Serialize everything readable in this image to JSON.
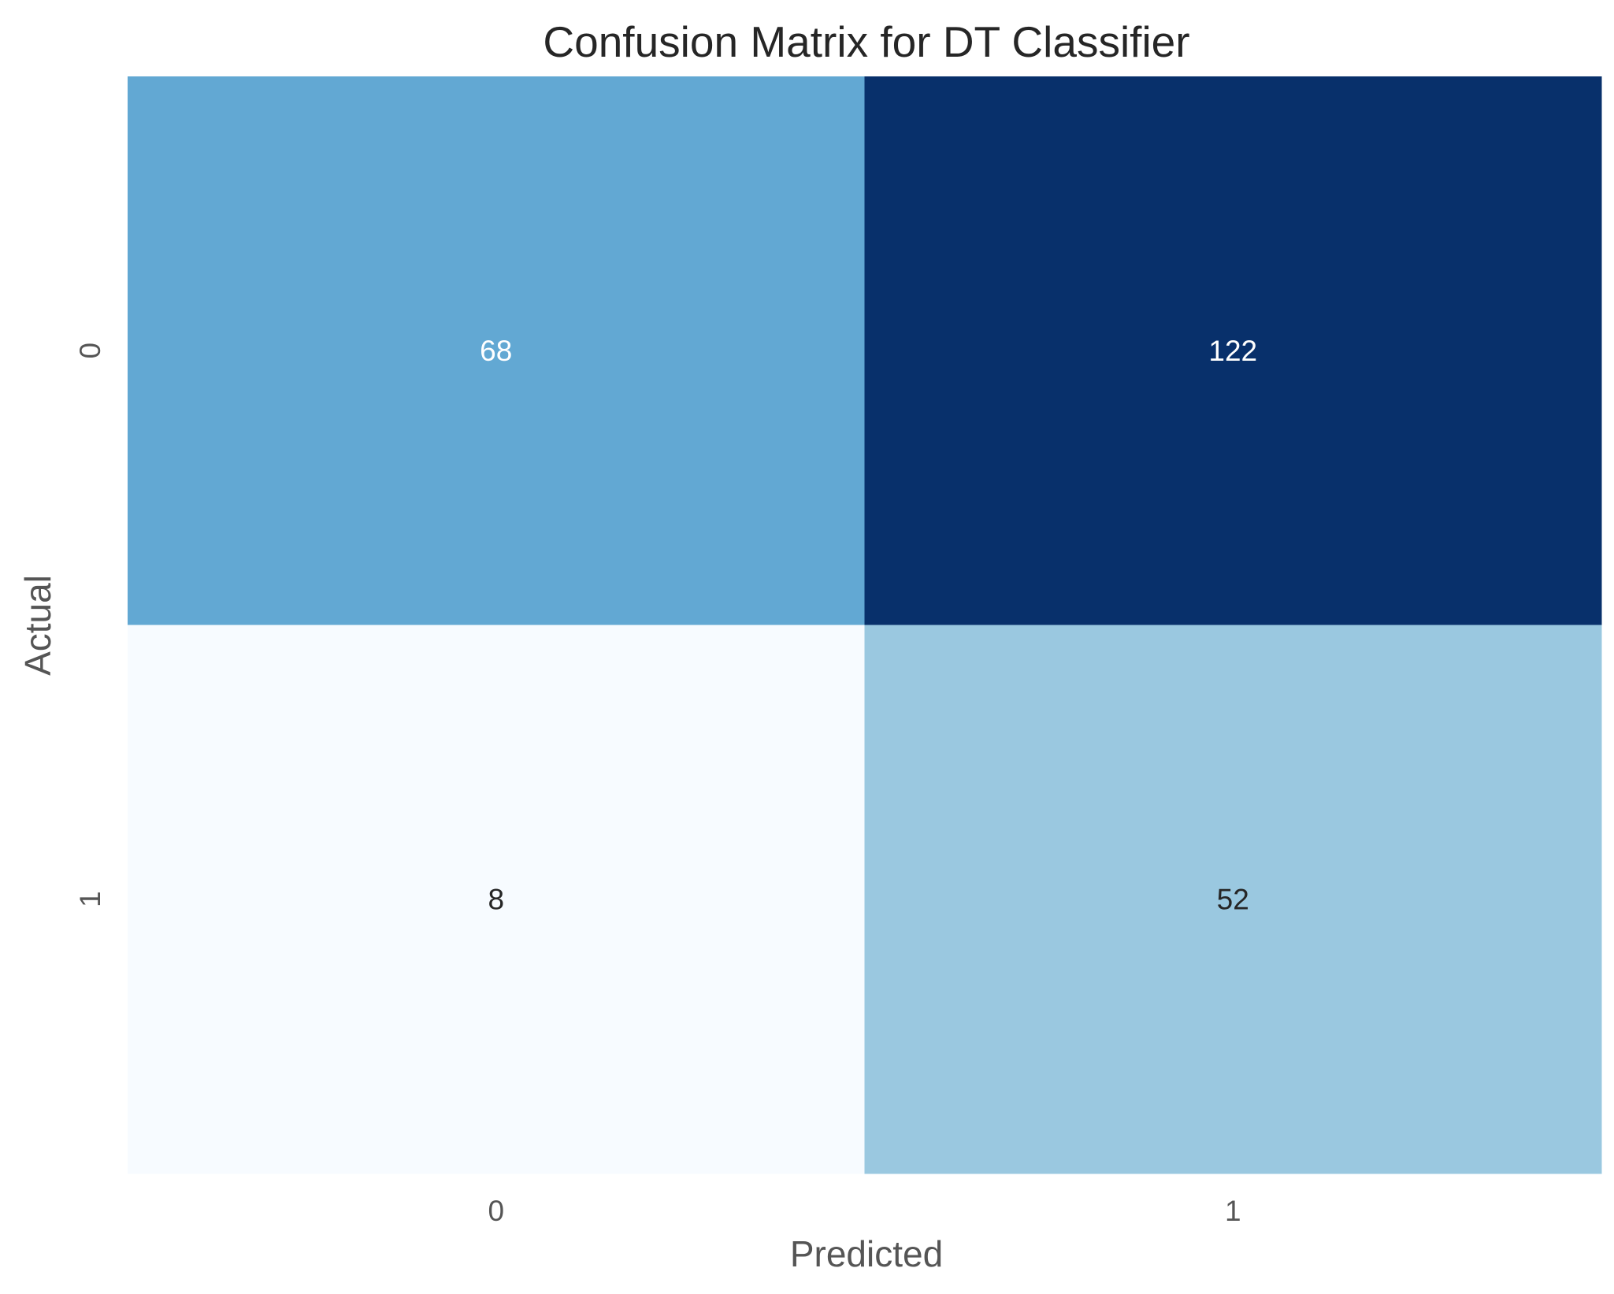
{
  "chart_data": {
    "type": "heatmap",
    "title": "Confusion Matrix for DT Classifier",
    "xlabel": "Predicted",
    "ylabel": "Actual",
    "x_categories": [
      "0",
      "1"
    ],
    "y_categories": [
      "0",
      "1"
    ],
    "values": [
      [
        68,
        122
      ],
      [
        8,
        52
      ]
    ],
    "value_labels": [
      [
        "68",
        "122"
      ],
      [
        "8",
        "52"
      ]
    ],
    "colormap": "Blues",
    "colorbar": false,
    "grid": false
  }
}
